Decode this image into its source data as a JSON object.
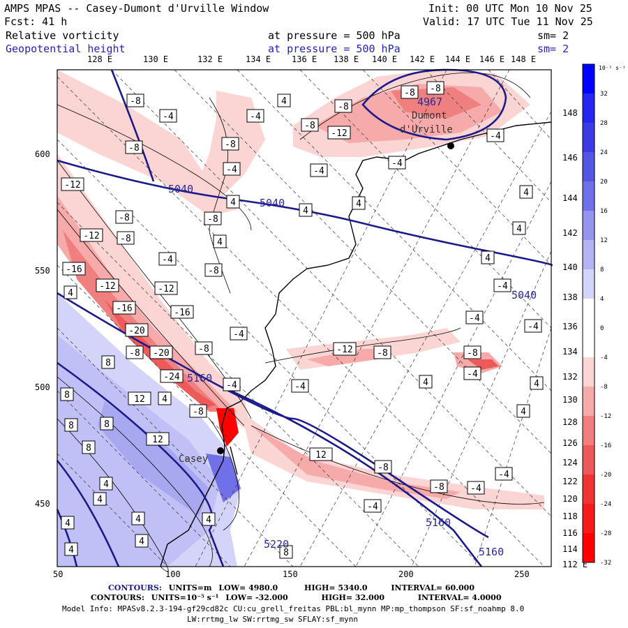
{
  "header": {
    "title": "AMPS MPAS -- Casey-Dumont d'Urville Window",
    "forecast": "Fcst:   41 h",
    "init": "Init: 00 UTC Mon 10 Nov 25",
    "valid": "Valid: 17 UTC Tue 11 Nov 25",
    "field1": {
      "name": "Relative vorticity",
      "level": "at pressure =  500 hPa",
      "sm": "sm= 2"
    },
    "field2": {
      "name": "Geopotential height",
      "level": "at pressure =  500 hPa",
      "sm": "sm= 2"
    }
  },
  "axes": {
    "top_lon": [
      "128 E",
      "130 E",
      "132 E",
      "134 E",
      "136 E",
      "138 E",
      "140 E",
      "142 E",
      "144 E",
      "146 E",
      "148 E"
    ],
    "right_lon": [
      "148 E",
      "146 E",
      "144 E",
      "142 E",
      "140 E",
      "138 E",
      "136 E",
      "134 E",
      "132 E",
      "130 E",
      "128 E",
      "126 E",
      "124 E",
      "122 E",
      "120 E",
      "118 E",
      "116 E",
      "114 E",
      "112 E"
    ],
    "left_y": [
      "600",
      "550",
      "500",
      "450"
    ],
    "bottom_x": [
      "50",
      "100",
      "150",
      "200",
      "250"
    ]
  },
  "map_labels": {
    "places": [
      "Dumont",
      "d'Urville",
      "Casey"
    ],
    "height_values": [
      "4967",
      "5040",
      "5040",
      "5040",
      "5160",
      "5160",
      "5160",
      "5220"
    ]
  },
  "colorbar": {
    "unit": "10⁻⁵ s⁻¹",
    "ticks": [
      "32",
      "28",
      "24",
      "20",
      "16",
      "12",
      "8",
      "4",
      "0",
      "-4",
      "-8",
      "-12",
      "-16",
      "-20",
      "-24",
      "-28",
      "-32"
    ],
    "colors": [
      "#0000ff",
      "#2626f0",
      "#3b3be6",
      "#5555e4",
      "#7070e8",
      "#9595ee",
      "#b4b4f4",
      "#d4d4fa",
      "#ffffff",
      "#ffffff",
      "#fbd4d4",
      "#f6aaaa",
      "#f08080",
      "#ec5a5a",
      "#ef3434",
      "#f61a1a",
      "#ff0000"
    ]
  },
  "footer": {
    "c1_label": "CONTOURS:",
    "c1_units": "UNITS=m",
    "c1_low": "LOW=  4980.0",
    "c1_high": "HIGH=  5340.0",
    "c1_interval": "INTERVAL=   60.000",
    "c2_label": "CONTOURS:",
    "c2_units": "UNITS=10⁻⁵ s⁻¹",
    "c2_low": "LOW= -32.000",
    "c2_high": "HIGH= 32.000",
    "c2_interval": "INTERVAL=  4.0000",
    "model_info": "Model Info: MPASv8.2.3-194-gf29cd82c CU:cu_grell_freitas PBL:bl_mynn MP:mp_thompson SF:sf_noahmp 8.0",
    "model_info2": "LW:rrtmg_lw SW:rrtmg_sw SFLAY:sf_mynn"
  }
}
